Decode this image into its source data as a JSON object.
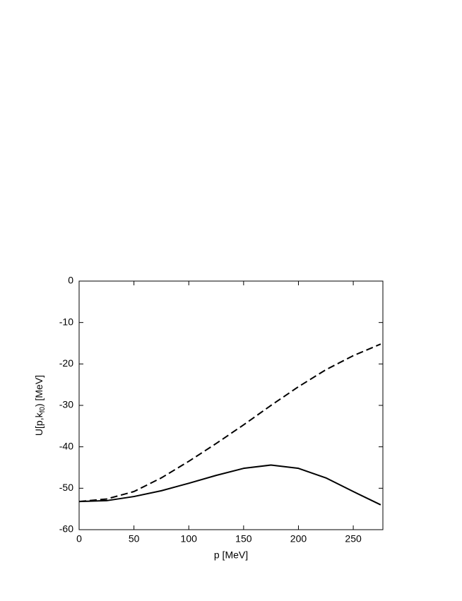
{
  "chart_data": {
    "type": "line",
    "x_label": "p [MeV]",
    "y_label": {
      "main": "U[p,k",
      "sub": "f0",
      "tail": ") [MeV]"
    },
    "x": [
      0,
      25,
      50,
      75,
      100,
      125,
      150,
      175,
      200,
      225,
      250,
      275
    ],
    "series": [
      {
        "color": "#000000",
        "dashed": false,
        "values": [
          -53.2,
          -53.0,
          -52.0,
          -50.6,
          -48.8,
          -46.9,
          -45.2,
          -44.4,
          -45.2,
          -47.5,
          -50.8,
          -54.0
        ]
      },
      {
        "color": "#000000",
        "dashed": true,
        "values": [
          -53.2,
          -52.6,
          -50.8,
          -47.5,
          -43.5,
          -39.2,
          -34.7,
          -30.0,
          -25.5,
          -21.4,
          -18.0,
          -15.2
        ]
      }
    ],
    "xlim": [
      0,
      277
    ],
    "xticks": [
      0,
      50,
      100,
      150,
      200,
      250
    ],
    "ylim": [
      -60,
      0
    ],
    "yticks": [
      0,
      -10,
      -20,
      -30,
      -40,
      -50,
      -60
    ],
    "grid": false
  }
}
